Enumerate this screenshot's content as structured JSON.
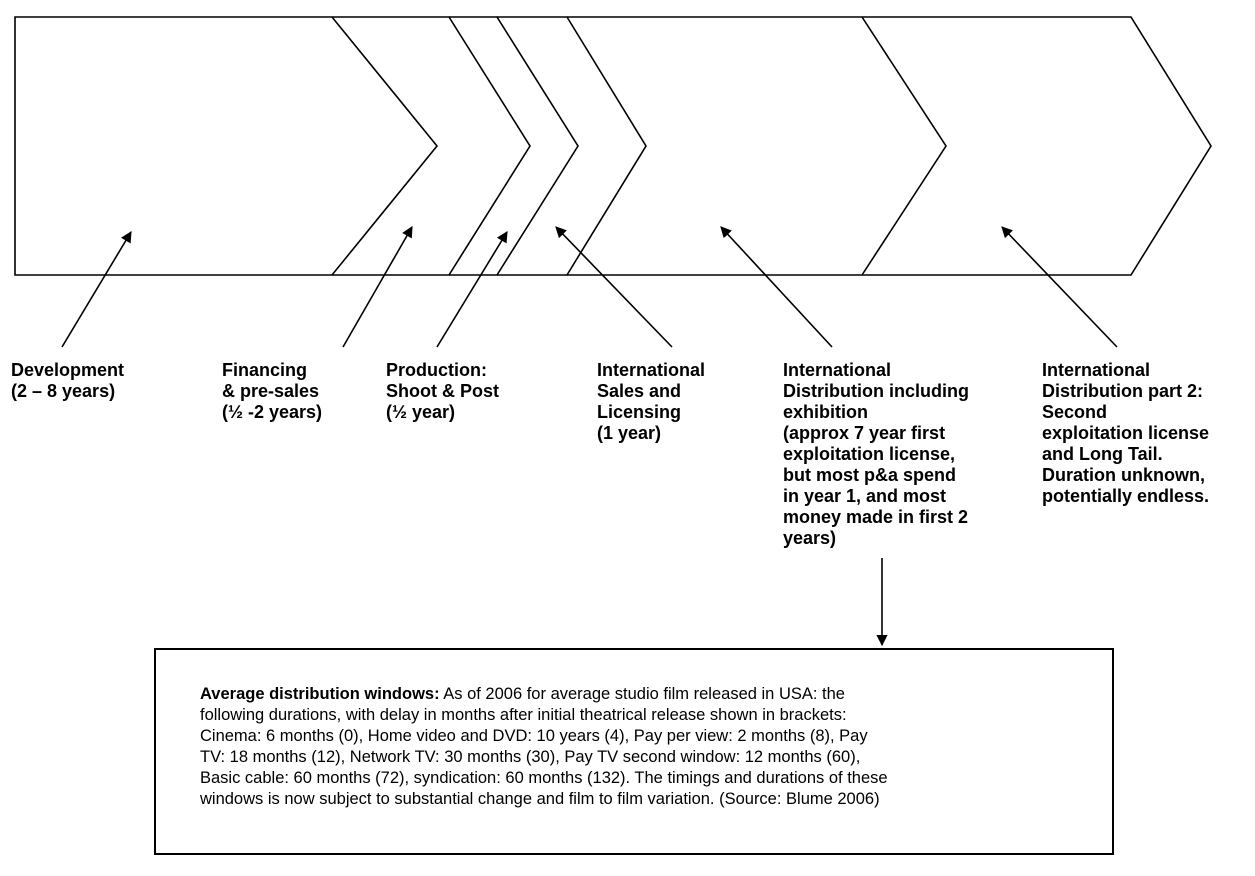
{
  "stages": [
    {
      "id": "development",
      "lines": [
        "Development",
        "(2 – 8 years)"
      ]
    },
    {
      "id": "financing",
      "lines": [
        "Financing",
        "& pre-sales",
        "(½ -2 years)"
      ]
    },
    {
      "id": "production",
      "lines": [
        "Production:",
        "Shoot & Post",
        "(½  year)"
      ]
    },
    {
      "id": "sales",
      "lines": [
        "International",
        "Sales and",
        "Licensing",
        "(1 year)"
      ]
    },
    {
      "id": "distribution-1",
      "lines": [
        "International",
        "Distribution including",
        "exhibition",
        "(approx 7 year first",
        "exploitation license,",
        "but most p&a spend",
        "in year 1, and most",
        "money made in first 2",
        "years)"
      ]
    },
    {
      "id": "distribution-2",
      "lines": [
        "International",
        "Distribution part 2:",
        "Second",
        "exploitation license",
        "and Long Tail.",
        "Duration unknown,",
        "potentially endless."
      ]
    }
  ],
  "note": {
    "heading": "Average distribution windows:",
    "lines": [
      " As of 2006 for average studio film released in USA: the",
      "following durations, with delay in months after initial theatrical release shown in brackets:",
      "Cinema: 6 months (0), Home video and DVD: 10 years (4), Pay per view: 2 months (8), Pay",
      "TV: 18 months (12), Network TV: 30 months (30), Pay TV second window: 12 months (60),",
      "Basic cable: 60 months (72), syndication: 60 months (132). The timings and durations of these",
      "windows is now subject to substantial change and film to film variation. (Source: Blume 2006)"
    ]
  }
}
